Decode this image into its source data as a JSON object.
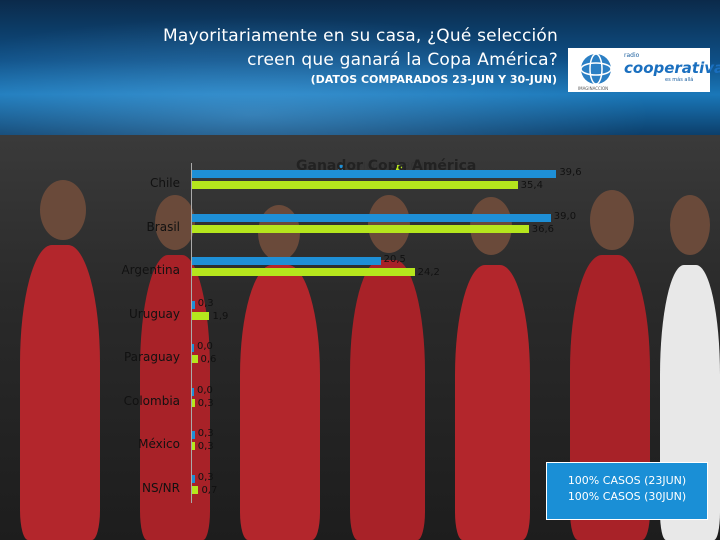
{
  "header": {
    "title_line1": "Mayoritariamente en su casa, ¿Qué selección",
    "title_line2": "creen que ganará la Copa América?",
    "subtitle": "(DATOS COMPARADOS 23-JUN Y 30-JUN)"
  },
  "logo": {
    "small": "radio",
    "brand": "cooperativa",
    "tagline": "es más allá",
    "sub": "IMAGINACCION"
  },
  "cases_box": {
    "line1": "100% CASOS (23JUN)",
    "line2": "100% CASOS (30JUN)"
  },
  "colors": {
    "series1": "#1e8fd6",
    "series2": "#b5e61d"
  },
  "chart_data": {
    "type": "bar",
    "orientation": "horizontal",
    "title": "Ganador Copa América",
    "categories": [
      "Chile",
      "Brasil",
      "Argentina",
      "Uruguay",
      "Paraguay",
      "Colombia",
      "México",
      "NS/NR"
    ],
    "series": [
      {
        "name": "23-Jun",
        "values": [
          39.6,
          39.0,
          20.5,
          0.3,
          0.0,
          0.0,
          0.3,
          0.3
        ]
      },
      {
        "name": "30-Jun",
        "values": [
          35.4,
          36.6,
          24.2,
          1.9,
          0.6,
          0.3,
          0.3,
          0.7
        ]
      }
    ],
    "value_labels": [
      [
        "39,6",
        "39,0",
        "20,5",
        "0,3",
        "0,0",
        "0,0",
        "0,3",
        "0,3"
      ],
      [
        "35,4",
        "36,6",
        "24,2",
        "1,9",
        "0,6",
        "0,3",
        "0,3",
        "0,7"
      ]
    ],
    "legend_placement": "top",
    "grid": false
  }
}
